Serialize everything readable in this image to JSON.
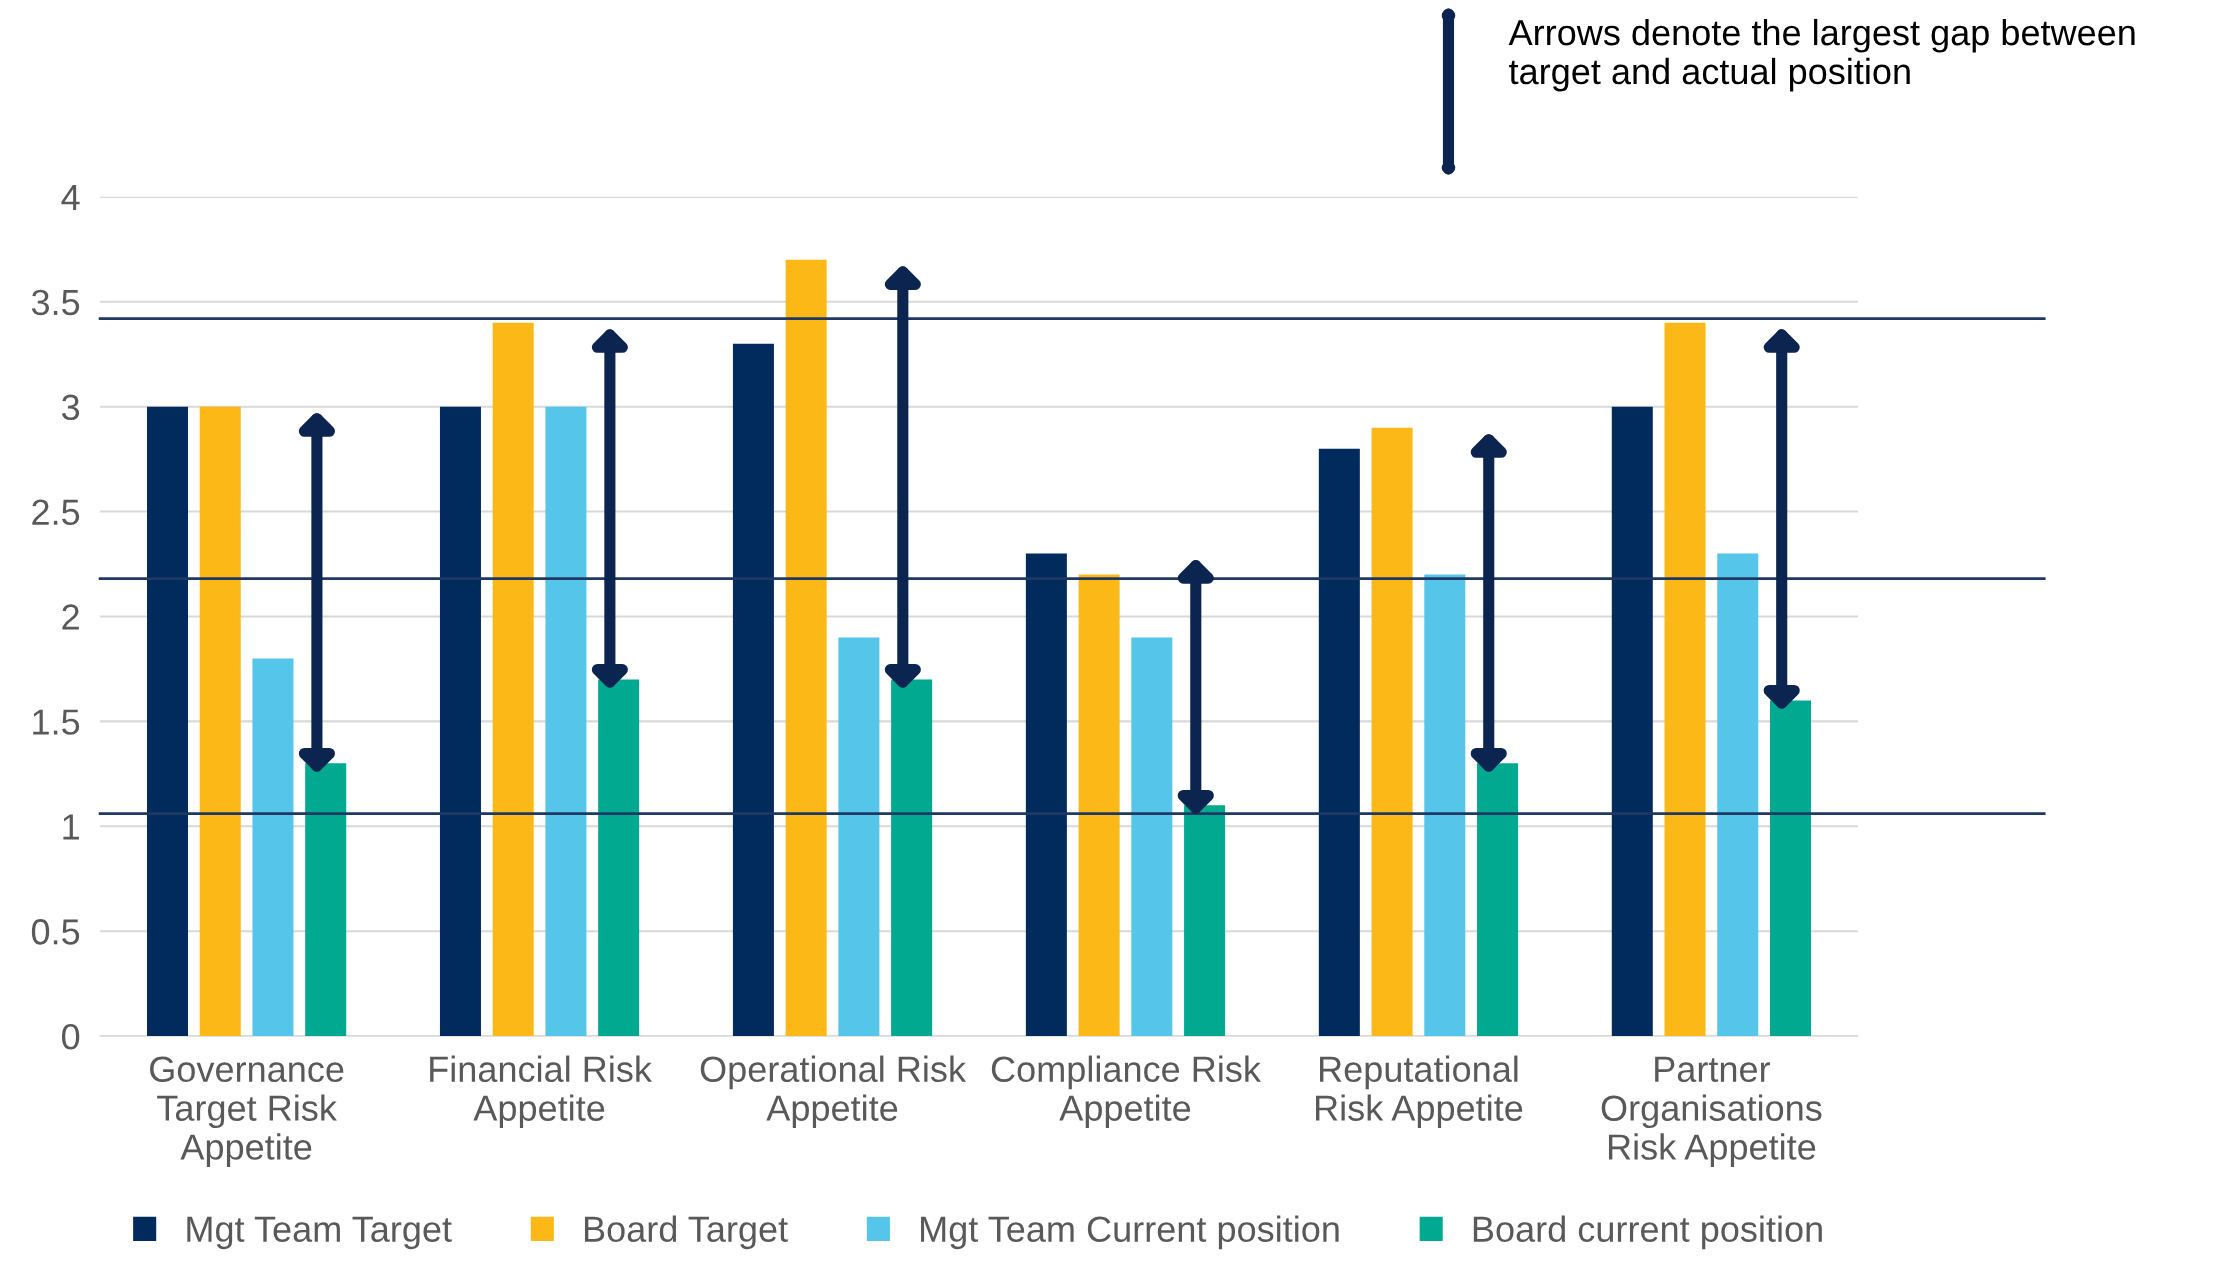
{
  "chart_data": {
    "type": "bar",
    "categories": [
      "Governance\nTarget Risk\nAppetite",
      "Financial Risk\nAppetite",
      "Operational Risk\nAppetite",
      "Compliance Risk\nAppetite",
      "Reputational\nRisk Appetite",
      "Partner\nOrganisations\nRisk Appetite"
    ],
    "series": [
      {
        "name": "Mgt Team Target",
        "color": "#002b5c",
        "values": [
          3,
          3,
          3.3,
          2.3,
          2.8,
          3
        ]
      },
      {
        "name": "Board Target",
        "color": "#fbb817",
        "values": [
          3,
          3.4,
          3.7,
          2.2,
          2.9,
          3.4
        ]
      },
      {
        "name": "Mgt Team Current position",
        "color": "#56c5ea",
        "values": [
          1.8,
          3,
          1.9,
          1.9,
          2.2,
          2.3
        ]
      },
      {
        "name": "Board current position",
        "color": "#00a98f",
        "values": [
          1.3,
          1.7,
          1.7,
          1.1,
          1.3,
          1.6
        ]
      }
    ],
    "ylim": [
      0,
      4
    ],
    "yticks": [
      0,
      0.5,
      1,
      1.5,
      2,
      2.5,
      3,
      3.5,
      4
    ],
    "grid": "y",
    "legend": "bottom",
    "ref_lines": [
      {
        "axis": "y",
        "value": 3.42,
        "color": "#1f3864"
      },
      {
        "axis": "y",
        "value": 2.18,
        "color": "#1f3864"
      },
      {
        "axis": "y",
        "value": 1.06,
        "color": "#1f3864"
      }
    ],
    "annotations": [
      "Arrows denote the largest gap between\ntarget and actual position"
    ]
  }
}
